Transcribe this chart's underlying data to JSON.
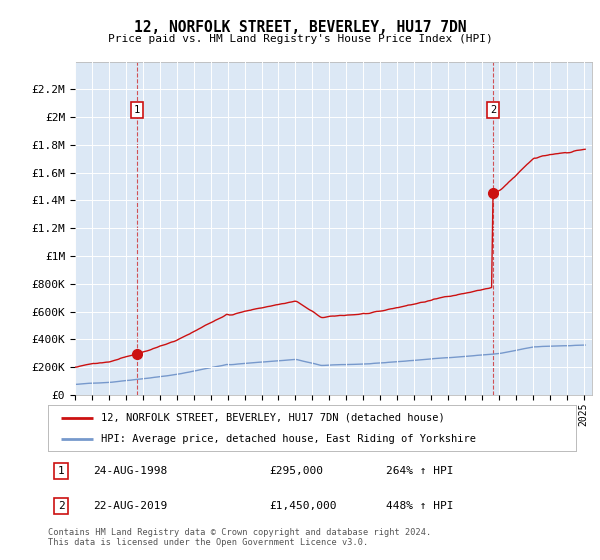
{
  "title": "12, NORFOLK STREET, BEVERLEY, HU17 7DN",
  "subtitle": "Price paid vs. HM Land Registry's House Price Index (HPI)",
  "background_color": "#dce8f5",
  "ylim": [
    0,
    2400000
  ],
  "yticks": [
    0,
    200000,
    400000,
    600000,
    800000,
    1000000,
    1200000,
    1400000,
    1600000,
    1800000,
    2000000,
    2200000
  ],
  "ytick_labels": [
    "£0",
    "£200K",
    "£400K",
    "£600K",
    "£800K",
    "£1M",
    "£1.2M",
    "£1.4M",
    "£1.6M",
    "£1.8M",
    "£2M",
    "£2.2M"
  ],
  "hpi_color": "#7799cc",
  "price_color": "#cc1111",
  "sale1_year": 1998.65,
  "sale1_price": 295000,
  "sale2_year": 2019.65,
  "sale2_price": 1450000,
  "legend_label_price": "12, NORFOLK STREET, BEVERLEY, HU17 7DN (detached house)",
  "legend_label_hpi": "HPI: Average price, detached house, East Riding of Yorkshire",
  "footer": "Contains HM Land Registry data © Crown copyright and database right 2024.\nThis data is licensed under the Open Government Licence v3.0.",
  "table_row1": [
    "1",
    "24-AUG-1998",
    "£295,000",
    "264% ↑ HPI"
  ],
  "table_row2": [
    "2",
    "22-AUG-2019",
    "£1,450,000",
    "448% ↑ HPI"
  ],
  "xlim_left": 1995,
  "xlim_right": 2025.5
}
